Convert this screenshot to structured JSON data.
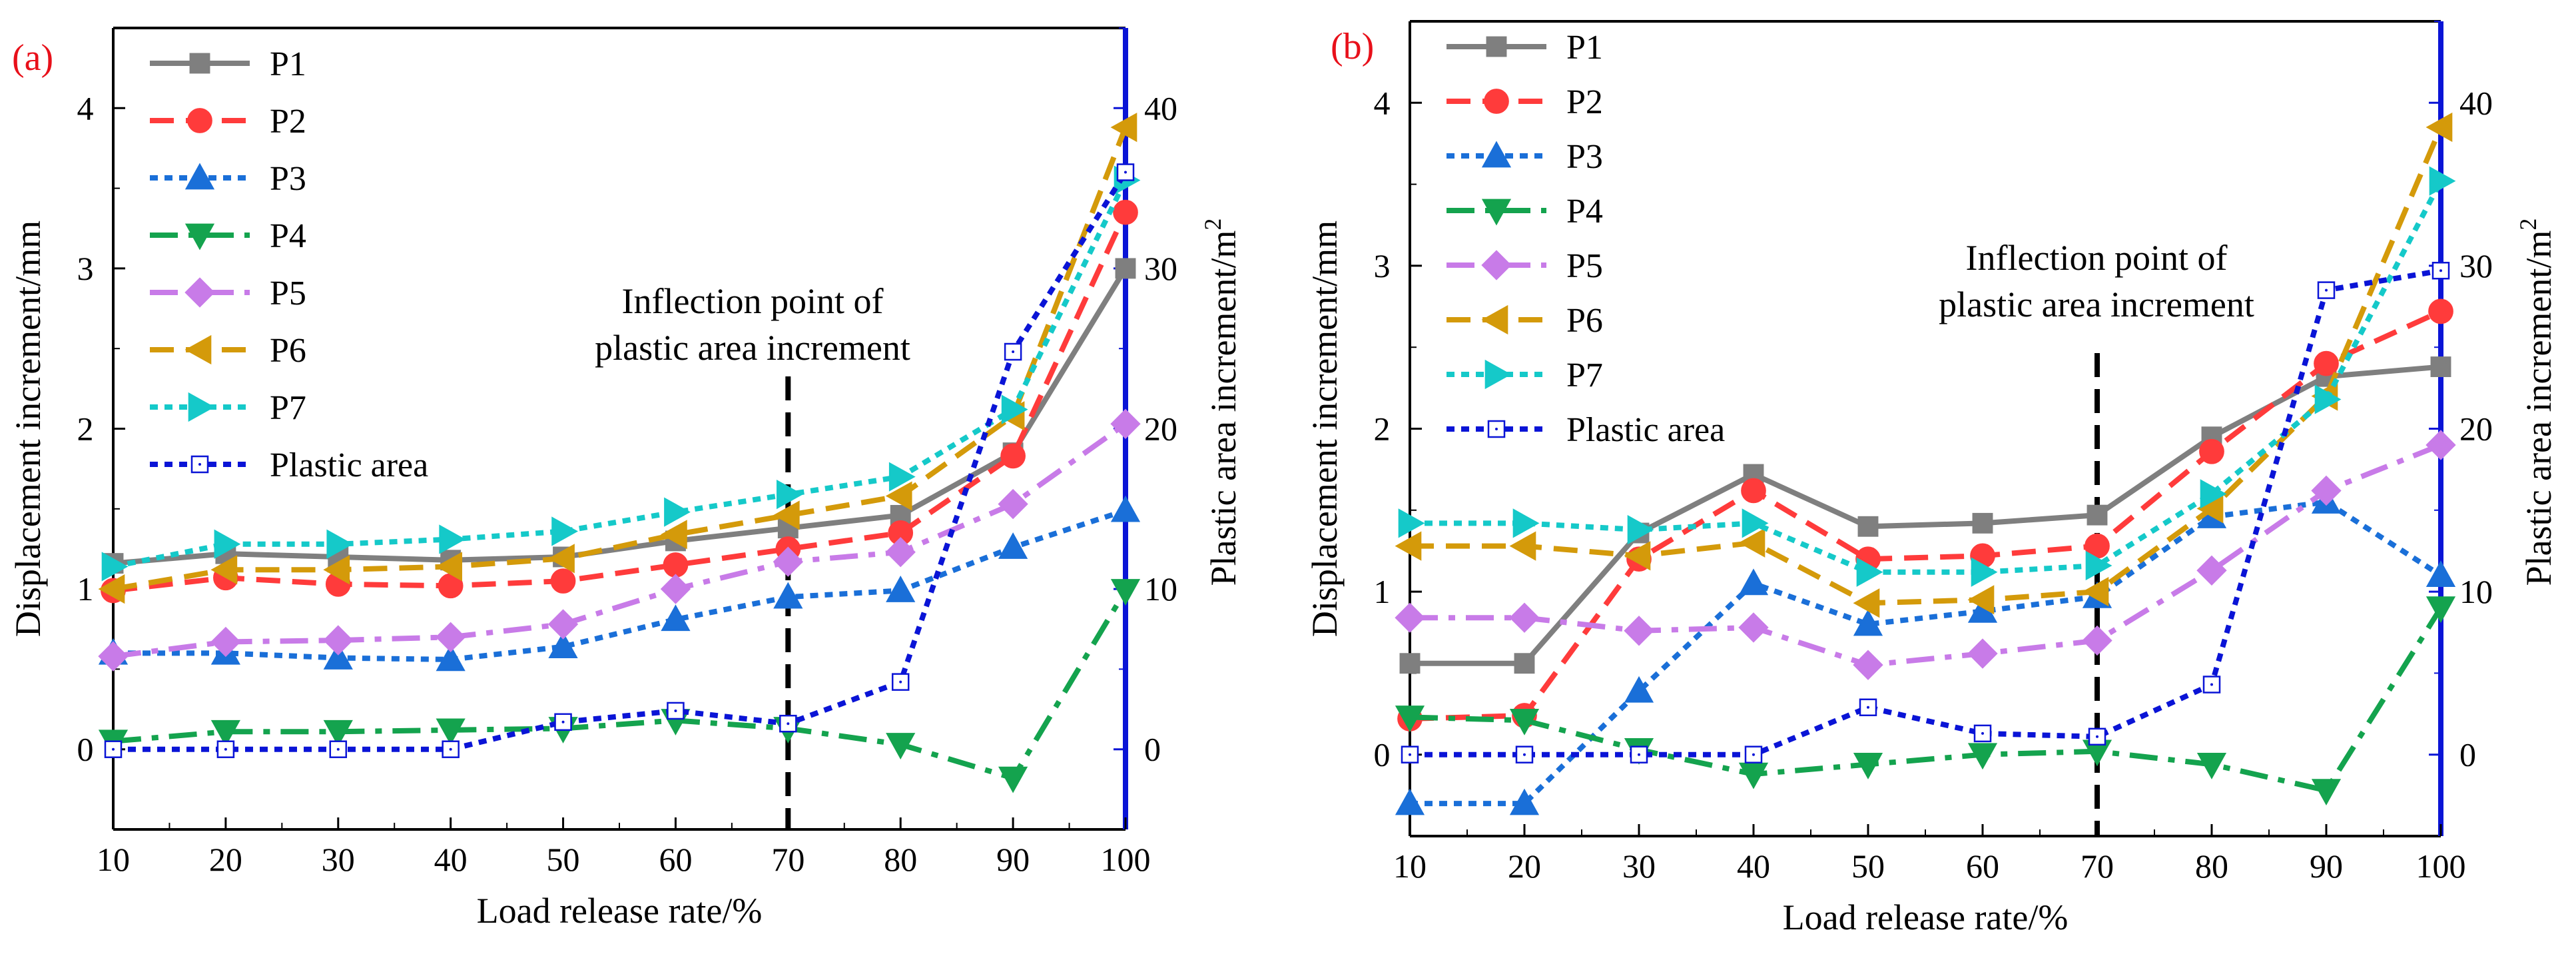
{
  "chart_data": [
    {
      "type": "line",
      "panel_label": "(a)",
      "xlabel": "Load release rate/%",
      "ylabel": "Displacement increment/mm",
      "y2label": "Plastic area increment/m",
      "y2label_sup": "2",
      "x": [
        10,
        20,
        30,
        40,
        50,
        60,
        70,
        80,
        90,
        100
      ],
      "xlim": [
        10,
        100
      ],
      "ylim": [
        -0.5,
        4.5
      ],
      "y2lim": [
        -5,
        45
      ],
      "xticks": [
        "10",
        "20",
        "30",
        "40",
        "50",
        "60",
        "70",
        "80",
        "90",
        "100"
      ],
      "yticks": [
        "0",
        "1",
        "2",
        "3",
        "4"
      ],
      "y2ticks": [
        "0",
        "10",
        "20",
        "30",
        "40"
      ],
      "annotation": {
        "lines": [
          "Inflection point of",
          "plastic area increment"
        ],
        "x": 70
      },
      "legend_position": "top-left",
      "series": [
        {
          "name": "P1",
          "color": "#7f7f7f",
          "marker": "square",
          "dash": "solid",
          "axis": "left",
          "values": [
            1.16,
            1.22,
            1.2,
            1.18,
            1.2,
            1.3,
            1.38,
            1.46,
            1.85,
            3.0
          ]
        },
        {
          "name": "P2",
          "color": "#ff3b3b",
          "marker": "circle",
          "dash": "dash",
          "axis": "left",
          "values": [
            0.99,
            1.07,
            1.03,
            1.02,
            1.05,
            1.15,
            1.25,
            1.35,
            1.83,
            3.35
          ]
        },
        {
          "name": "P3",
          "color": "#1a6fd8",
          "marker": "triangle-up",
          "dash": "dot",
          "axis": "left",
          "values": [
            0.6,
            0.6,
            0.57,
            0.56,
            0.64,
            0.81,
            0.95,
            0.99,
            1.26,
            1.49
          ]
        },
        {
          "name": "P4",
          "color": "#14a34e",
          "marker": "triangle-down",
          "dash": "dashdot",
          "axis": "left",
          "values": [
            0.05,
            0.11,
            0.11,
            0.12,
            0.13,
            0.18,
            0.13,
            0.03,
            -0.18,
            0.99
          ]
        },
        {
          "name": "P5",
          "color": "#c87be8",
          "marker": "diamond",
          "dash": "dashdot",
          "axis": "left",
          "values": [
            0.58,
            0.67,
            0.68,
            0.7,
            0.78,
            1.0,
            1.17,
            1.23,
            1.53,
            2.03
          ]
        },
        {
          "name": "P6",
          "color": "#d49a0a",
          "marker": "triangle-left",
          "dash": "dash",
          "axis": "left",
          "values": [
            1.0,
            1.12,
            1.12,
            1.14,
            1.19,
            1.34,
            1.46,
            1.58,
            2.08,
            3.88
          ]
        },
        {
          "name": "P7",
          "color": "#15c9c9",
          "marker": "triangle-right",
          "dash": "dot",
          "axis": "left",
          "values": [
            1.14,
            1.28,
            1.28,
            1.31,
            1.36,
            1.48,
            1.59,
            1.7,
            2.12,
            3.55
          ]
        },
        {
          "name": "Plastic area",
          "color": "#0a14d6",
          "marker": "open-square",
          "dash": "dot",
          "axis": "right",
          "values": [
            0.0,
            0.0,
            0.0,
            0.0,
            1.7,
            2.4,
            1.6,
            4.2,
            24.8,
            36.0
          ]
        }
      ]
    },
    {
      "type": "line",
      "panel_label": "(b)",
      "xlabel": "Load release rate/%",
      "ylabel": "Displacement increment/mm",
      "y2label": "Plastic area increment/m",
      "y2label_sup": "2",
      "x": [
        10,
        20,
        30,
        40,
        50,
        60,
        70,
        80,
        90,
        100
      ],
      "xlim": [
        10,
        100
      ],
      "ylim": [
        -0.5,
        4.5
      ],
      "y2lim": [
        -5,
        45
      ],
      "xticks": [
        "10",
        "20",
        "30",
        "40",
        "50",
        "60",
        "70",
        "80",
        "90",
        "100"
      ],
      "yticks": [
        "0",
        "1",
        "2",
        "3",
        "4"
      ],
      "y2ticks": [
        "0",
        "10",
        "20",
        "30",
        "40"
      ],
      "annotation": {
        "lines": [
          "Inflection point of",
          "plastic area increment"
        ],
        "x": 70
      },
      "legend_position": "top-left",
      "series": [
        {
          "name": "P1",
          "color": "#7f7f7f",
          "marker": "square",
          "dash": "solid",
          "axis": "left",
          "values": [
            0.56,
            0.56,
            1.36,
            1.72,
            1.4,
            1.42,
            1.47,
            1.95,
            2.32,
            2.38
          ]
        },
        {
          "name": "P2",
          "color": "#ff3b3b",
          "marker": "circle",
          "dash": "dash",
          "axis": "left",
          "values": [
            0.22,
            0.24,
            1.2,
            1.62,
            1.2,
            1.22,
            1.28,
            1.86,
            2.4,
            2.72
          ]
        },
        {
          "name": "P3",
          "color": "#1a6fd8",
          "marker": "triangle-up",
          "dash": "dot",
          "axis": "left",
          "values": [
            -0.3,
            -0.3,
            0.39,
            1.05,
            0.8,
            0.88,
            0.97,
            1.46,
            1.55,
            1.1
          ]
        },
        {
          "name": "P4",
          "color": "#14a34e",
          "marker": "triangle-down",
          "dash": "dashdot",
          "axis": "left",
          "values": [
            0.23,
            0.21,
            0.03,
            -0.12,
            -0.06,
            0.0,
            0.02,
            -0.06,
            -0.22,
            0.9
          ]
        },
        {
          "name": "P5",
          "color": "#c87be8",
          "marker": "diamond",
          "dash": "dashdot",
          "axis": "left",
          "values": [
            0.84,
            0.84,
            0.76,
            0.78,
            0.55,
            0.62,
            0.7,
            1.13,
            1.62,
            1.9
          ]
        },
        {
          "name": "P6",
          "color": "#d49a0a",
          "marker": "triangle-left",
          "dash": "dash",
          "axis": "left",
          "values": [
            1.28,
            1.28,
            1.22,
            1.3,
            0.93,
            0.95,
            1.0,
            1.51,
            2.2,
            3.85
          ]
        },
        {
          "name": "P7",
          "color": "#15c9c9",
          "marker": "triangle-right",
          "dash": "dot",
          "axis": "left",
          "values": [
            1.42,
            1.42,
            1.38,
            1.42,
            1.12,
            1.12,
            1.16,
            1.6,
            2.18,
            3.52
          ]
        },
        {
          "name": "Plastic area",
          "color": "#0a14d6",
          "marker": "open-square",
          "dash": "dot",
          "axis": "right",
          "values": [
            0.0,
            0.0,
            0.0,
            0.0,
            2.9,
            1.3,
            1.1,
            4.3,
            28.5,
            29.7
          ]
        }
      ]
    }
  ]
}
